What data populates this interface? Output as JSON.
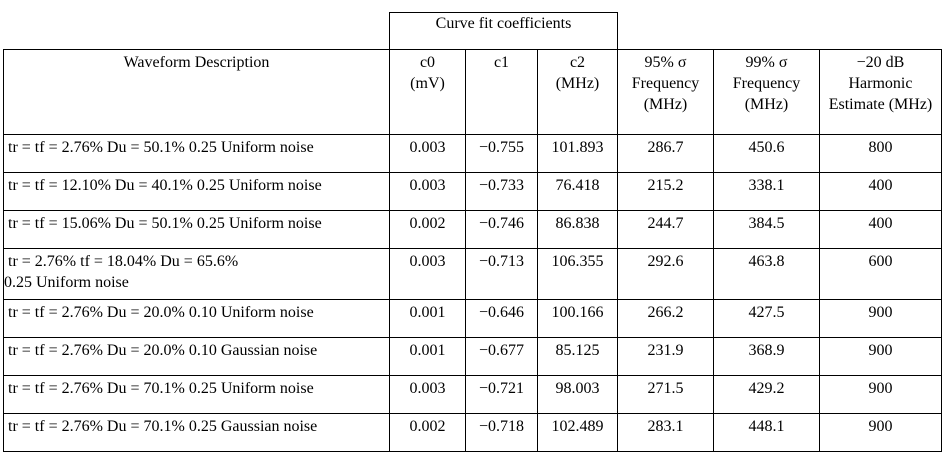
{
  "table": {
    "group_header": "Curve fit coefficients",
    "headers": {
      "description": "Waveform Description",
      "c0": [
        "c0",
        "(mV)"
      ],
      "c1": [
        "c1"
      ],
      "c2": [
        "c2",
        "(MHz)"
      ],
      "f95": [
        "95% σ",
        "Frequency",
        "(MHz)"
      ],
      "f99": [
        "99% σ",
        "Frequency",
        "(MHz)"
      ],
      "harm": [
        "−20 dB",
        "Harmonic",
        "Estimate (MHz)"
      ]
    },
    "rows": [
      {
        "desc": [
          "tr = tf = 2.76% Du = 50.1% 0.25 Uniform noise"
        ],
        "c0": "0.003",
        "c1": "−0.755",
        "c2": "101.893",
        "f95": "286.7",
        "f99": "450.6",
        "harm": "800"
      },
      {
        "desc": [
          "tr = tf = 12.10% Du = 40.1% 0.25 Uniform noise"
        ],
        "c0": "0.003",
        "c1": "−0.733",
        "c2": "76.418",
        "f95": "215.2",
        "f99": "338.1",
        "harm": "400"
      },
      {
        "desc": [
          "tr = tf = 15.06% Du = 50.1% 0.25 Uniform noise"
        ],
        "c0": "0.002",
        "c1": "−0.746",
        "c2": "86.838",
        "f95": "244.7",
        "f99": "384.5",
        "harm": "400"
      },
      {
        "desc": [
          "tr = 2.76% tf = 18.04% Du = 65.6%",
          "0.25 Uniform noise"
        ],
        "c0": "0.003",
        "c1": "−0.713",
        "c2": "106.355",
        "f95": "292.6",
        "f99": "463.8",
        "harm": "600"
      },
      {
        "desc": [
          "tr = tf = 2.76% Du = 20.0% 0.10 Uniform noise"
        ],
        "c0": "0.001",
        "c1": "−0.646",
        "c2": "100.166",
        "f95": "266.2",
        "f99": "427.5",
        "harm": "900"
      },
      {
        "desc": [
          "tr = tf = 2.76% Du = 20.0% 0.10 Gaussian noise"
        ],
        "c0": "0.001",
        "c1": "−0.677",
        "c2": "85.125",
        "f95": "231.9",
        "f99": "368.9",
        "harm": "900"
      },
      {
        "desc": [
          "tr = tf = 2.76% Du = 70.1% 0.25 Uniform noise"
        ],
        "c0": "0.003",
        "c1": "−0.721",
        "c2": "98.003",
        "f95": "271.5",
        "f99": "429.2",
        "harm": "900"
      },
      {
        "desc": [
          "tr = tf = 2.76% Du = 70.1% 0.25 Gaussian noise"
        ],
        "c0": "0.002",
        "c1": "−0.718",
        "c2": "102.489",
        "f95": "283.1",
        "f99": "448.1",
        "harm": "900"
      }
    ]
  }
}
